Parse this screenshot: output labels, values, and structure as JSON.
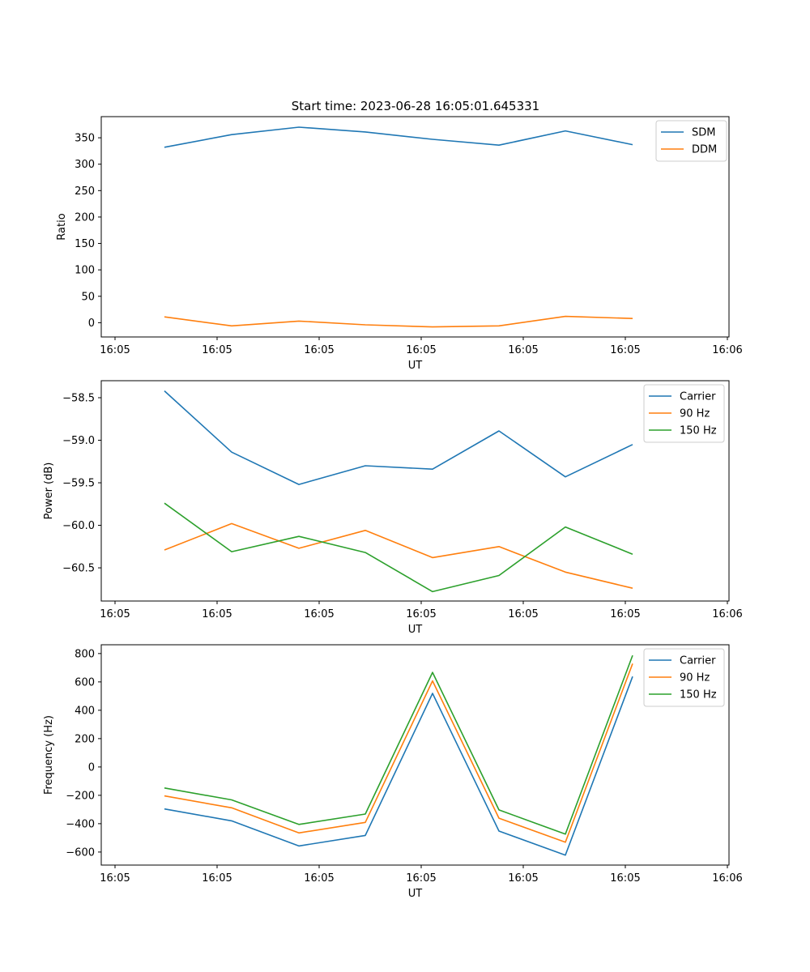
{
  "title": "Start time: 2023-06-28 16:05:01.645331",
  "colors": {
    "c1": "#1f77b4",
    "c2": "#ff7f0e",
    "c3": "#2ca02c"
  },
  "chart_data": [
    {
      "type": "line",
      "xlabel": "UT",
      "ylabel": "Ratio",
      "x_tick_labels": [
        "16:05",
        "16:05",
        "16:05",
        "16:05",
        "16:05",
        "16:05",
        "16:06"
      ],
      "y_ticks": [
        0,
        50,
        100,
        150,
        200,
        250,
        300,
        350
      ],
      "ylim": [
        -27,
        390
      ],
      "legend": "top-right",
      "grid": false,
      "series": [
        {
          "name": "SDM",
          "color": "#1f77b4",
          "values": [
            332,
            356,
            370,
            361,
            347,
            336,
            363,
            337
          ]
        },
        {
          "name": "DDM",
          "color": "#ff7f0e",
          "values": [
            11,
            -6,
            3,
            -4,
            -8,
            -6,
            12,
            8
          ]
        }
      ]
    },
    {
      "type": "line",
      "xlabel": "UT",
      "ylabel": "Power (dB)",
      "x_tick_labels": [
        "16:05",
        "16:05",
        "16:05",
        "16:05",
        "16:05",
        "16:05",
        "16:06"
      ],
      "y_ticks": [
        -58.5,
        -59.0,
        -59.5,
        -60.0,
        -60.5
      ],
      "y_tick_labels": [
        "−58.5",
        "−59.0",
        "−59.5",
        "−60.0",
        "−60.5"
      ],
      "ylim": [
        -60.89,
        -58.3
      ],
      "legend": "top-right",
      "grid": false,
      "series": [
        {
          "name": "Carrier",
          "color": "#1f77b4",
          "values": [
            -58.42,
            -59.14,
            -59.52,
            -59.3,
            -59.34,
            -58.89,
            -59.43,
            -59.05
          ]
        },
        {
          "name": "90 Hz",
          "color": "#ff7f0e",
          "values": [
            -60.29,
            -59.98,
            -60.27,
            -60.06,
            -60.38,
            -60.25,
            -60.55,
            -60.74
          ]
        },
        {
          "name": "150 Hz",
          "color": "#2ca02c",
          "values": [
            -59.74,
            -60.31,
            -60.13,
            -60.32,
            -60.78,
            -60.59,
            -60.02,
            -60.34
          ]
        }
      ]
    },
    {
      "type": "line",
      "xlabel": "UT",
      "ylabel": "Frequency (Hz)",
      "x_tick_labels": [
        "16:05",
        "16:05",
        "16:05",
        "16:05",
        "16:05",
        "16:05",
        "16:06"
      ],
      "y_ticks": [
        -600,
        -400,
        -200,
        0,
        200,
        400,
        600,
        800
      ],
      "y_tick_labels": [
        "−600",
        "−400",
        "−200",
        "0",
        "200",
        "400",
        "600",
        "800"
      ],
      "ylim": [
        -692,
        862
      ],
      "legend": "top-right",
      "grid": false,
      "series": [
        {
          "name": "Carrier",
          "color": "#1f77b4",
          "values": [
            -296,
            -380,
            -557,
            -483,
            519,
            -452,
            -622,
            638
          ]
        },
        {
          "name": "90 Hz",
          "color": "#ff7f0e",
          "values": [
            -204,
            -288,
            -465,
            -391,
            607,
            -361,
            -531,
            729
          ]
        },
        {
          "name": "150 Hz",
          "color": "#2ca02c",
          "values": [
            -148,
            -232,
            -405,
            -332,
            667,
            -303,
            -474,
            787
          ]
        }
      ]
    }
  ]
}
